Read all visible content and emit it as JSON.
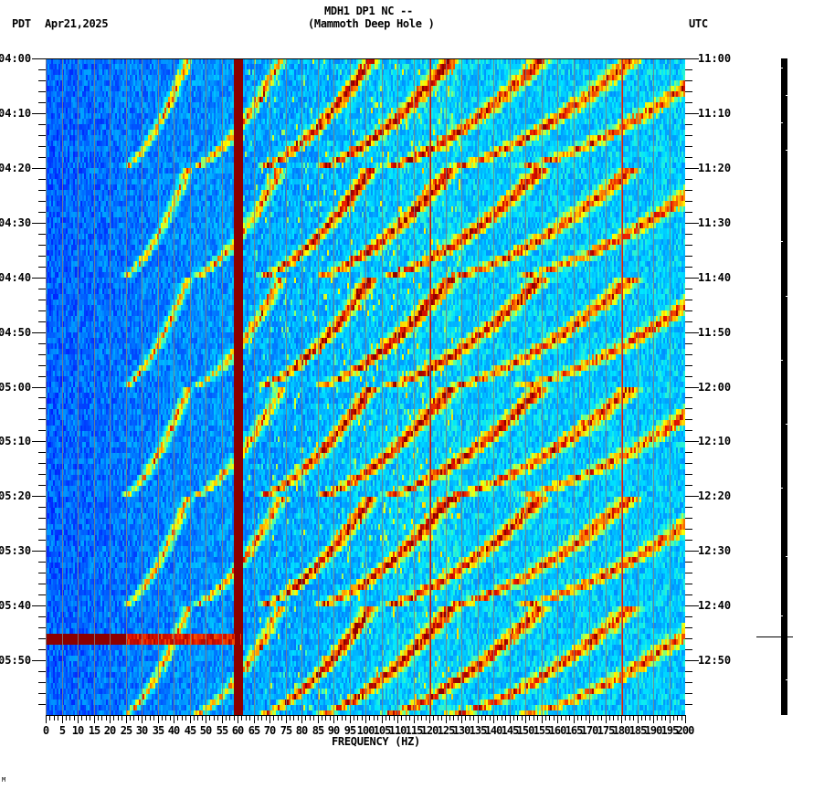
{
  "header": {
    "title_line1": "MDH1 DP1 NC --",
    "title_line2": "(Mammoth Deep Hole )",
    "left_timezone": "PDT",
    "date": "Apr21,2025",
    "right_timezone": "UTC"
  },
  "chart_data": {
    "type": "heatmap",
    "title": "MDH1 DP1 NC -- (Mammoth Deep Hole )",
    "xlabel": "FREQUENCY (HZ)",
    "ylabel_left": "PDT",
    "ylabel_right": "UTC",
    "date": "Apr21,2025",
    "xlim": [
      0,
      200
    ],
    "x_ticks": [
      0,
      5,
      10,
      15,
      20,
      25,
      30,
      35,
      40,
      45,
      50,
      55,
      60,
      65,
      70,
      75,
      80,
      85,
      90,
      95,
      100,
      105,
      110,
      115,
      120,
      125,
      130,
      135,
      140,
      145,
      150,
      155,
      160,
      165,
      170,
      175,
      180,
      185,
      190,
      195,
      200
    ],
    "y_ticks_left": [
      "04:00",
      "04:10",
      "04:20",
      "04:30",
      "04:40",
      "04:50",
      "05:00",
      "05:10",
      "05:20",
      "05:30",
      "05:40",
      "05:50"
    ],
    "y_ticks_right": [
      "11:00",
      "11:10",
      "11:20",
      "11:30",
      "11:40",
      "11:50",
      "12:00",
      "12:10",
      "12:20",
      "12:30",
      "12:40",
      "12:50"
    ],
    "time_range_local": [
      "04:00",
      "06:00"
    ],
    "time_range_utc": [
      "11:00",
      "13:00"
    ],
    "colormap": [
      "#0000ff",
      "#0066ff",
      "#00ccff",
      "#00ffff",
      "#66ff99",
      "#ffff00",
      "#ff9900",
      "#ff0000",
      "#990000"
    ],
    "features": {
      "persistent_lines_hz": [
        60,
        120,
        180
      ],
      "strong_line_hz": 60,
      "horizontal_event_time_local": "05:45",
      "horizontal_event_extent_hz": [
        0,
        60
      ],
      "grid_lines_every_hz": 5,
      "repeating_arcs_period_min": 20
    }
  },
  "side_bar": {
    "event_marker_time_local": "05:45"
  },
  "corner_mark": "M"
}
